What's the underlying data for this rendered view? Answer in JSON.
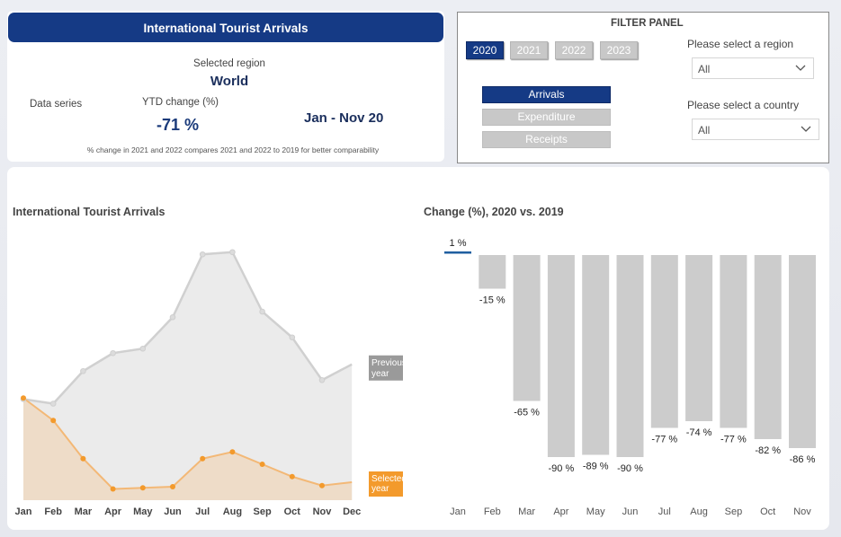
{
  "summary": {
    "title": "International Tourist Arrivals",
    "selected_region_label": "Selected region",
    "selected_region": "World",
    "data_series_label": "Data series",
    "ytd_label": "YTD change (%)",
    "ytd_value": "-71 %",
    "period": "Jan - Nov 20",
    "note": "% change in 2021 and 2022 compares 2021 and 2022  to 2019 for better comparability"
  },
  "filter": {
    "title": "FILTER PANEL",
    "years": [
      "2020",
      "2021",
      "2022",
      "2023"
    ],
    "active_year": "2020",
    "series": [
      "Arrivals",
      "Expenditure",
      "Receipts"
    ],
    "active_series": "Arrivals",
    "region_label": "Please select a region",
    "region_value": "All",
    "country_label": "Please select a country",
    "country_value": "All"
  },
  "colors": {
    "accent": "#153a85",
    "previous_year": "#c8c8c8",
    "selected_year": "#f0a040",
    "bar": "#cccccc",
    "positive_marker": "#1f5fa0"
  },
  "chart_data": [
    {
      "type": "area",
      "title": "International Tourist Arrivals",
      "categories": [
        "Jan",
        "Feb",
        "Mar",
        "Apr",
        "May",
        "Jun",
        "Jul",
        "Aug",
        "Sep",
        "Oct",
        "Nov",
        "Dec"
      ],
      "series": [
        {
          "name": "Previous year",
          "values": [
            90,
            86,
            115,
            131,
            135,
            163,
            219,
            221,
            168,
            145,
            107,
            121
          ]
        },
        {
          "name": "Selected year",
          "values": [
            91,
            71,
            37,
            10,
            11,
            12,
            37,
            43,
            32,
            21,
            13,
            16
          ]
        }
      ],
      "grid": false,
      "legend": "right"
    },
    {
      "type": "bar",
      "title": "Change (%), 2020 vs. 2019",
      "categories": [
        "Jan",
        "Feb",
        "Mar",
        "Apr",
        "May",
        "Jun",
        "Jul",
        "Aug",
        "Sep",
        "Oct",
        "Nov"
      ],
      "values": [
        1,
        -15,
        -65,
        -90,
        -89,
        -90,
        -77,
        -74,
        -77,
        -82,
        -86
      ],
      "labels": [
        "1 %",
        "-15 %",
        "-65 %",
        "-90 %",
        "-89 %",
        "-90 %",
        "-77 %",
        "-74 %",
        "-77 %",
        "-82 %",
        "-86 %"
      ],
      "ylim": [
        -100,
        5
      ]
    }
  ]
}
